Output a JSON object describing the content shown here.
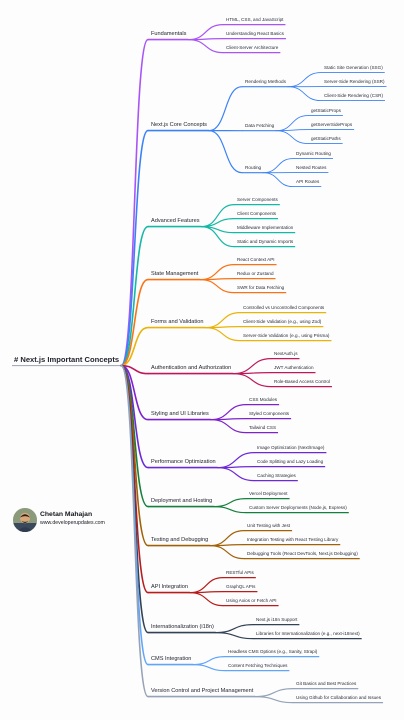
{
  "root": "# Next.js Important Concepts",
  "author": {
    "name": "Chetan Mahajan",
    "website": "www.developerupdates.com"
  },
  "mindmap": [
    {
      "label": "Fundamentals",
      "color": "#a855f7",
      "children": [
        {
          "label": "HTML, CSS, and JavaScript"
        },
        {
          "label": "Understanding React Basics"
        },
        {
          "label": "Client-Server Architecture"
        }
      ]
    },
    {
      "label": "Next.js Core Concepts",
      "color": "#3b82f6",
      "children": [
        {
          "label": "Rendering Methods",
          "children": [
            {
              "label": "Static Site Generation (SSG)"
            },
            {
              "label": "Server-Side Rendering (SSR)"
            },
            {
              "label": "Client-Side Rendering (CSR)"
            }
          ]
        },
        {
          "label": "Data Fetching",
          "children": [
            {
              "label": "getStaticProps"
            },
            {
              "label": "getServerSideProps"
            },
            {
              "label": "getStaticPaths"
            }
          ]
        },
        {
          "label": "Routing",
          "children": [
            {
              "label": "Dynamic Routing"
            },
            {
              "label": "Nested Routes"
            },
            {
              "label": "API Routes"
            }
          ]
        }
      ]
    },
    {
      "label": "Advanced Features",
      "color": "#14b8a6",
      "children": [
        {
          "label": "Server Components"
        },
        {
          "label": "Client Components"
        },
        {
          "label": "Middleware Implementation"
        },
        {
          "label": "Static and Dynamic Imports"
        }
      ]
    },
    {
      "label": "State Management",
      "color": "#f97316",
      "children": [
        {
          "label": "React Context API"
        },
        {
          "label": "Redux or Zustand"
        },
        {
          "label": "SWR for Data Fetching"
        }
      ]
    },
    {
      "label": "Forms and Validation",
      "color": "#eab308",
      "children": [
        {
          "label": "Controlled vs Uncontrolled Components"
        },
        {
          "label": "Client-Side Validation (e.g., using Zod)"
        },
        {
          "label": "Server-Side Validation (e.g., using Prisma)"
        }
      ]
    },
    {
      "label": "Authentication and Authorization",
      "color": "#be185d",
      "children": [
        {
          "label": "NextAuth.js"
        },
        {
          "label": "JWT Authentication"
        },
        {
          "label": "Role-Based Access Control"
        }
      ]
    },
    {
      "label": "Styling and UI Libraries",
      "color": "#7e22ce",
      "children": [
        {
          "label": "CSS Modules"
        },
        {
          "label": "Styled Components"
        },
        {
          "label": "Tailwind CSS"
        }
      ]
    },
    {
      "label": "Performance Optimization",
      "color": "#6d28d9",
      "children": [
        {
          "label": "Image Optimization (Next/Image)"
        },
        {
          "label": "Code Splitting and Lazy Loading"
        },
        {
          "label": "Caching Strategies"
        }
      ]
    },
    {
      "label": "Deployment and Hosting",
      "color": "#15803d",
      "children": [
        {
          "label": "Vercel Deployment"
        },
        {
          "label": "Custom Server Deployments (Node.js, Express)"
        }
      ]
    },
    {
      "label": "Testing and Debugging",
      "color": "#a16207",
      "children": [
        {
          "label": "Unit Testing with Jest"
        },
        {
          "label": "Integration Testing with React Testing Library"
        },
        {
          "label": "Debugging Tools (React DevTools, Next.js Debugging)"
        }
      ]
    },
    {
      "label": "API Integration",
      "color": "#b91c1c",
      "children": [
        {
          "label": "RESTful APIs"
        },
        {
          "label": "GraphQL APIs"
        },
        {
          "label": "Using Axios or Fetch API"
        }
      ]
    },
    {
      "label": "Internationalization (i18n)",
      "color": "#334155",
      "children": [
        {
          "label": "Next.js i18n Support"
        },
        {
          "label": "Libraries for Internationalization (e.g., next-i18next)"
        }
      ]
    },
    {
      "label": "CMS Integration",
      "color": "#60a5fa",
      "children": [
        {
          "label": "Headless CMS Options (e.g., Sanity, Strapi)"
        },
        {
          "label": "Content Fetching Techniques"
        }
      ]
    },
    {
      "label": "Version Control and Project Management",
      "color": "#94a3b8",
      "children": [
        {
          "label": "Git Basics and Best Practices"
        },
        {
          "label": "Using Github for Collaboration and Issues"
        }
      ]
    }
  ]
}
